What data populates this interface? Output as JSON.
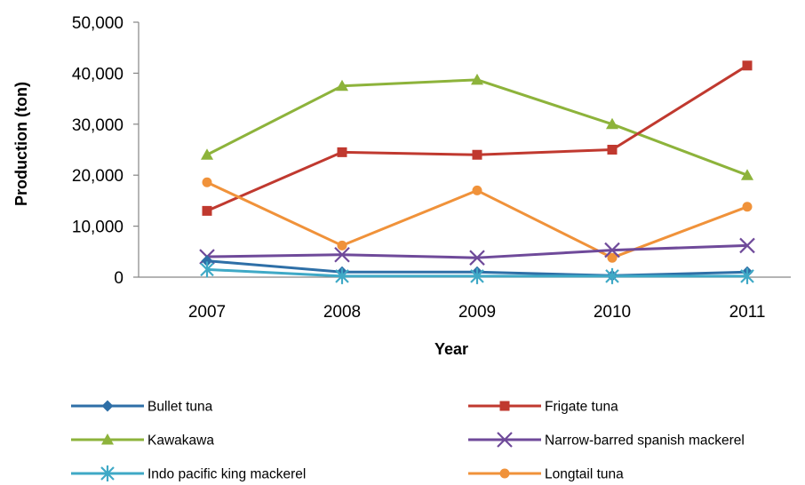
{
  "chart_data": {
    "type": "line",
    "title": "",
    "xlabel": "Year",
    "ylabel": "Production (ton)",
    "categories": [
      "2007",
      "2008",
      "2009",
      "2010",
      "2011"
    ],
    "ylim": [
      0,
      50000
    ],
    "yticks": [
      0,
      10000,
      20000,
      30000,
      40000,
      50000
    ],
    "ytick_labels": [
      "0",
      "10,000",
      "20,000",
      "30,000",
      "40,000",
      "50,000"
    ],
    "grid": false,
    "legend_position": "bottom",
    "series": [
      {
        "name": "Bullet tuna",
        "color": "#2e6fa7",
        "marker": "diamond",
        "values": [
          3200,
          1000,
          1000,
          300,
          1000
        ]
      },
      {
        "name": "Frigate tuna",
        "color": "#c0392f",
        "marker": "square",
        "values": [
          13000,
          24500,
          24000,
          25000,
          41500
        ]
      },
      {
        "name": "Kawakawa",
        "color": "#8db33b",
        "marker": "triangle",
        "values": [
          24000,
          37500,
          38700,
          30000,
          20000
        ]
      },
      {
        "name": "Narrow-barred spanish mackerel",
        "color": "#6f4a9a",
        "marker": "x",
        "values": [
          4000,
          4400,
          3800,
          5300,
          6200
        ]
      },
      {
        "name": "Indo pacific king mackerel",
        "color": "#3fa9c6",
        "marker": "star",
        "values": [
          1500,
          200,
          200,
          200,
          200
        ]
      },
      {
        "name": "Longtail tuna",
        "color": "#f0923a",
        "marker": "circle",
        "values": [
          18600,
          6200,
          17000,
          3800,
          13800
        ]
      }
    ]
  }
}
